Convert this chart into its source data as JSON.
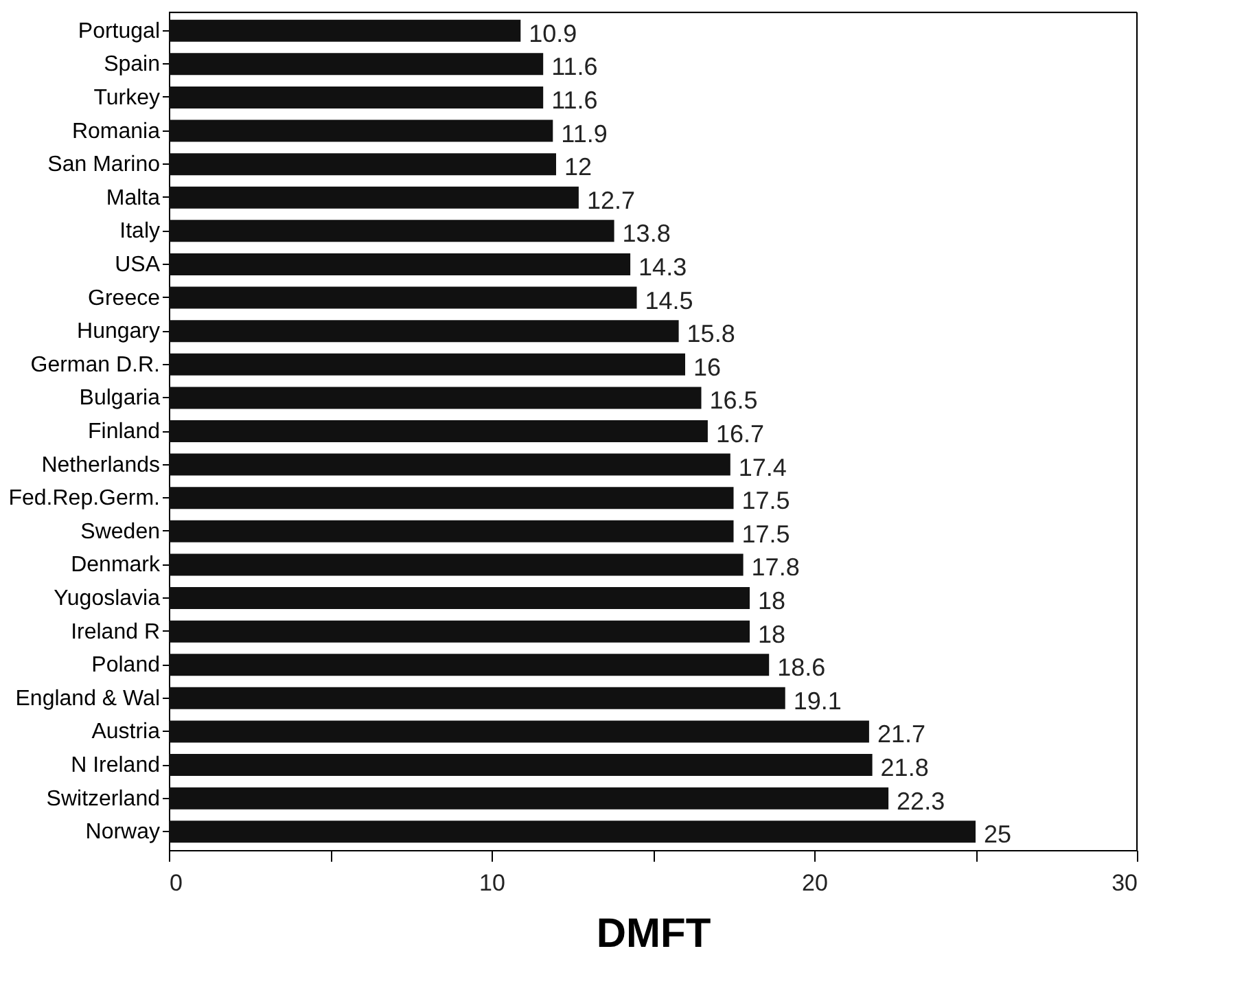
{
  "chart_data": {
    "type": "bar",
    "orientation": "horizontal",
    "xlabel": "DMFT",
    "categories": [
      "Portugal",
      "Spain",
      "Turkey",
      "Romania",
      "San Marino",
      "Malta",
      "Italy",
      "USA",
      "Greece",
      "Hungary",
      "German D.R.",
      "Bulgaria",
      "Finland",
      "Netherlands",
      "Fed.Rep.Germ.",
      "Sweden",
      "Denmark",
      "Yugoslavia",
      "Ireland R",
      "Poland",
      "England & Wal",
      "Austria",
      "N Ireland",
      "Switzerland",
      "Norway"
    ],
    "values": [
      10.9,
      11.6,
      11.6,
      11.9,
      12,
      12.7,
      13.8,
      14.3,
      14.5,
      15.8,
      16,
      16.5,
      16.7,
      17.4,
      17.5,
      17.5,
      17.8,
      18,
      18,
      18.6,
      19.1,
      21.7,
      21.8,
      22.3,
      25
    ],
    "color": "#111111",
    "xlim": [
      0,
      30
    ],
    "xticks": [
      0,
      {
        "value": 5,
        "label": null
      },
      10,
      {
        "value": 15,
        "label": null
      },
      20,
      {
        "value": 25,
        "label": null
      },
      30
    ],
    "data_labels": true,
    "grid": false
  }
}
